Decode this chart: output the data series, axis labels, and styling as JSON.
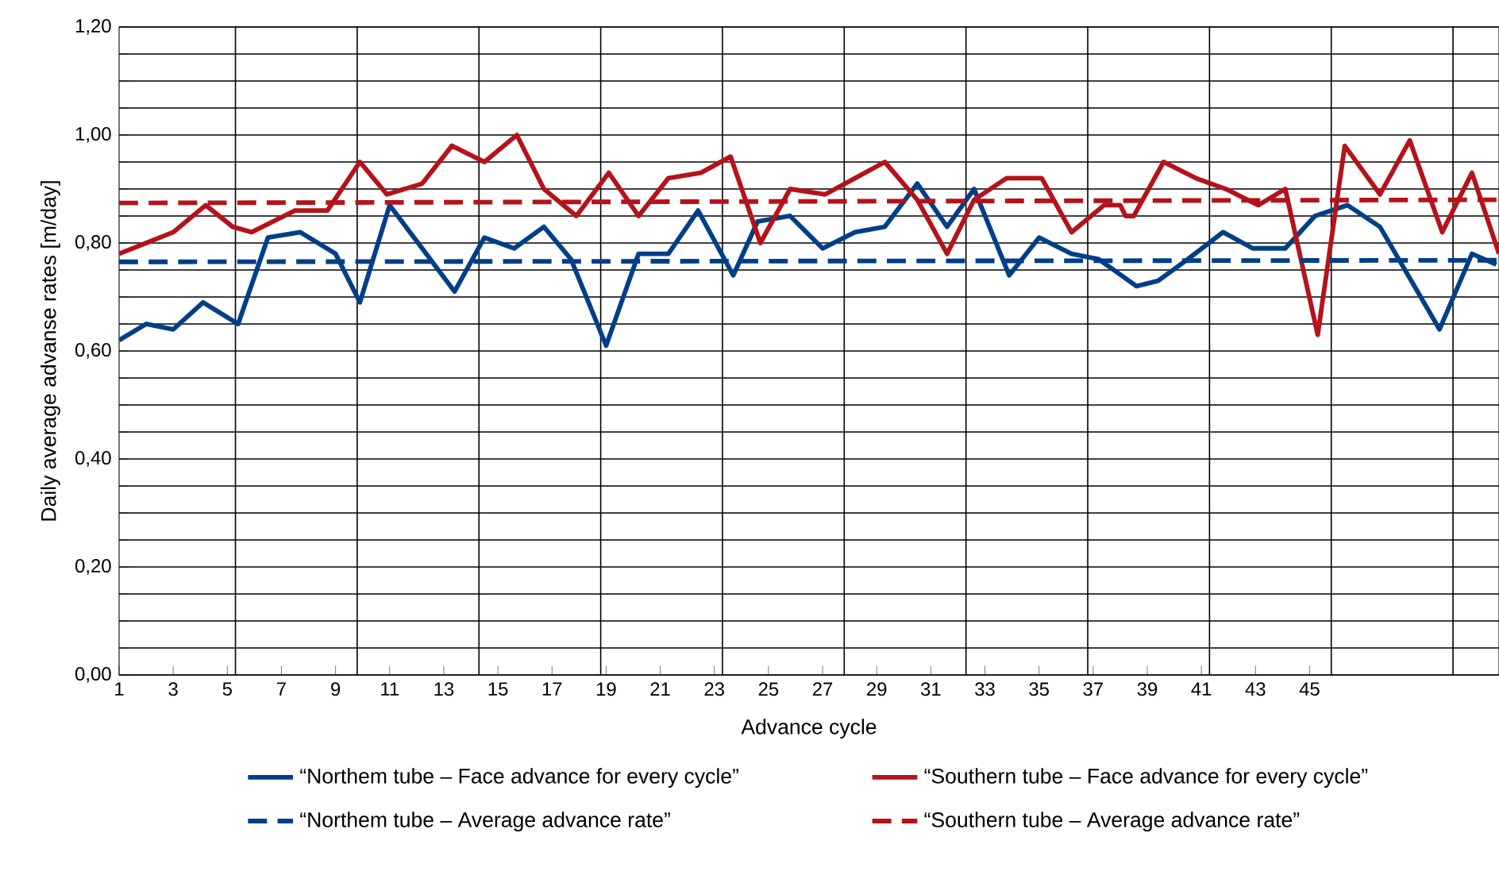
{
  "chart_data": {
    "type": "line",
    "xlabel": "Advance cycle",
    "ylabel": "Daily average advanse rates [m/day]",
    "xlim": [
      1,
      52
    ],
    "ylim": [
      0,
      1.2
    ],
    "xticks": [
      1,
      3,
      5,
      7,
      9,
      11,
      13,
      15,
      17,
      19,
      21,
      23,
      25,
      27,
      29,
      31,
      33,
      35,
      37,
      39,
      41,
      43,
      45,
      {
        "value": 5.3,
        "label": null
      },
      {
        "value": 9.8,
        "label": null
      },
      {
        "value": 14.3,
        "label": null
      },
      {
        "value": 18.8,
        "label": null
      },
      {
        "value": 23.3,
        "label": null
      },
      {
        "value": 27.8,
        "label": null
      },
      {
        "value": 32.3,
        "label": null
      },
      {
        "value": 36.8,
        "label": null
      },
      {
        "value": 41.3,
        "label": null
      },
      {
        "value": 45.8,
        "label": null
      },
      {
        "value": 50.3,
        "label": null
      }
    ],
    "yticks": [
      {
        "value": 0,
        "label": "0,00"
      },
      {
        "value": 0.05,
        "label": null
      },
      {
        "value": 0.1,
        "label": null
      },
      {
        "value": 0.15,
        "label": null
      },
      {
        "value": 0.2,
        "label": "0,20"
      },
      {
        "value": 0.25,
        "label": null
      },
      {
        "value": 0.3,
        "label": null
      },
      {
        "value": 0.35,
        "label": null
      },
      {
        "value": 0.4,
        "label": "0,40"
      },
      {
        "value": 0.45,
        "label": null
      },
      {
        "value": 0.5,
        "label": null
      },
      {
        "value": 0.55,
        "label": null
      },
      {
        "value": 0.6,
        "label": "0,60"
      },
      {
        "value": 0.65,
        "label": null
      },
      {
        "value": 0.7,
        "label": null
      },
      {
        "value": 0.75,
        "label": null
      },
      {
        "value": 0.8,
        "label": "0,80"
      },
      {
        "value": 0.85,
        "label": null
      },
      {
        "value": 0.9,
        "label": null
      },
      {
        "value": 0.95,
        "label": null
      },
      {
        "value": 1.0,
        "label": "1,00"
      },
      {
        "value": 1.05,
        "label": null
      },
      {
        "value": 1.1,
        "label": null
      },
      {
        "value": 1.15,
        "label": null
      },
      {
        "value": 1.2,
        "label": "1,20"
      }
    ],
    "grid": true,
    "legend": "bottom",
    "marker": "none",
    "series": [
      {
        "name": "“Northem tube – Face advance for every cycle”",
        "color": "#003f87",
        "line_style": "solid",
        "x": [
          1.0,
          2.0,
          3.0,
          4.1,
          5.4,
          6.5,
          7.7,
          9.0,
          9.9,
          11.0,
          12.2,
          13.4,
          14.5,
          15.6,
          16.7,
          17.7,
          19.0,
          20.2,
          21.3,
          22.4,
          23.7,
          24.6,
          25.8,
          27.0,
          28.2,
          29.3,
          30.5,
          31.6,
          32.6,
          33.9,
          35.0,
          36.2,
          37.2,
          38.6,
          39.4,
          40.5,
          41.8,
          42.9,
          44.1,
          45.2,
          46.4,
          47.6,
          49.8,
          51.0,
          51.9
        ],
        "values": [
          0.62,
          0.65,
          0.64,
          0.69,
          0.65,
          0.81,
          0.82,
          0.78,
          0.69,
          0.87,
          0.79,
          0.71,
          0.81,
          0.79,
          0.83,
          0.77,
          0.61,
          0.78,
          0.78,
          0.86,
          0.74,
          0.84,
          0.85,
          0.79,
          0.82,
          0.83,
          0.91,
          0.83,
          0.9,
          0.74,
          0.81,
          0.78,
          0.77,
          0.72,
          0.73,
          0.77,
          0.82,
          0.79,
          0.79,
          0.85,
          0.87,
          0.83,
          0.64,
          0.78,
          0.76
        ]
      },
      {
        "name": "“Southern tube – Face advance for every cycle”",
        "color": "#b5121b",
        "line_style": "solid",
        "x": [
          1.0,
          2.0,
          3.0,
          4.2,
          5.2,
          5.9,
          7.5,
          8.7,
          9.9,
          10.9,
          12.2,
          13.3,
          14.5,
          15.7,
          16.7,
          17.9,
          19.1,
          20.2,
          21.3,
          22.5,
          23.6,
          24.7,
          25.8,
          27.1,
          28.2,
          29.3,
          30.5,
          31.6,
          32.6,
          33.8,
          35.1,
          36.2,
          37.4,
          38.0,
          38.2,
          38.5,
          39.6,
          40.8,
          41.9,
          43.1,
          44.1,
          45.3,
          46.3,
          47.6,
          48.7,
          49.9,
          51.0,
          52.0
        ],
        "values": [
          0.78,
          0.8,
          0.82,
          0.87,
          0.83,
          0.82,
          0.86,
          0.86,
          0.95,
          0.89,
          0.91,
          0.98,
          0.95,
          1.0,
          0.9,
          0.85,
          0.93,
          0.85,
          0.92,
          0.93,
          0.96,
          0.8,
          0.9,
          0.89,
          0.92,
          0.95,
          0.88,
          0.78,
          0.88,
          0.92,
          0.92,
          0.82,
          0.87,
          0.87,
          0.85,
          0.85,
          0.95,
          0.92,
          0.9,
          0.87,
          0.9,
          0.63,
          0.98,
          0.89,
          0.99,
          0.82,
          0.93,
          0.78
        ]
      },
      {
        "name": "“Northem tube – Average advance rate”",
        "color": "#003f87",
        "line_style": "dashed",
        "x": [
          1,
          52
        ],
        "values": [
          0.765,
          0.768
        ]
      },
      {
        "name": "“Southern tube – Average advance rate”",
        "color": "#b5121b",
        "line_style": "dashed",
        "x": [
          1,
          52
        ],
        "values": [
          0.874,
          0.88
        ]
      }
    ]
  }
}
